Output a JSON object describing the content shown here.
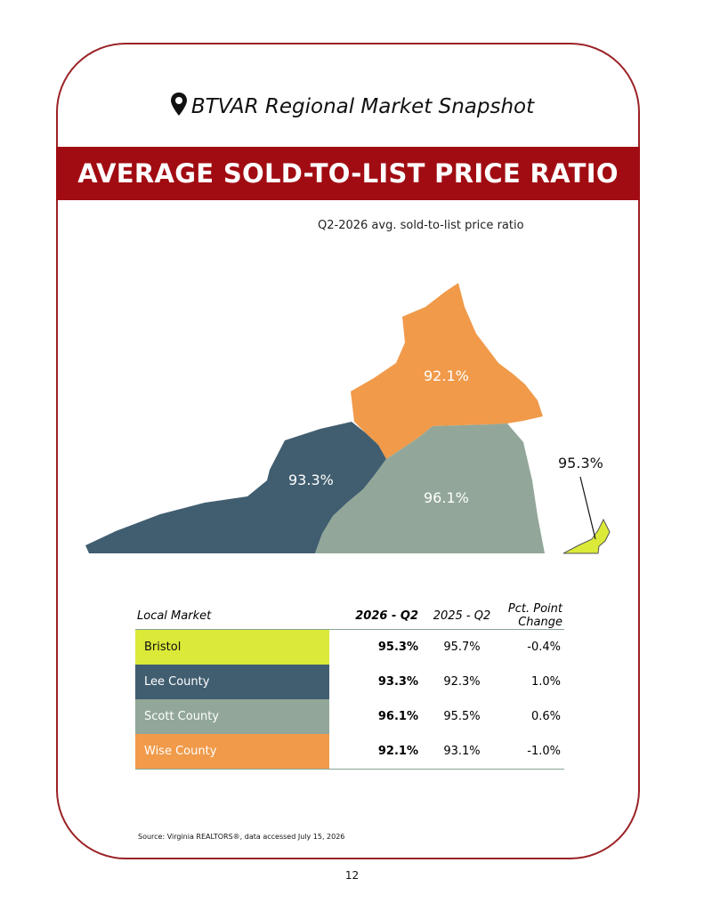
{
  "header": {
    "title": "BTVAR Regional Market Snapshot",
    "icon": "map-pin-icon"
  },
  "banner": {
    "title": "AVERAGE SOLD-TO-LIST PRICE RATIO",
    "color": "#a10c12"
  },
  "map": {
    "caption": "Q2-2026 avg. sold-to-list price ratio",
    "regions": [
      {
        "name": "Wise County",
        "label": "92.1%",
        "color": "#f09a4a"
      },
      {
        "name": "Lee County",
        "label": "93.3%",
        "color": "#415e70"
      },
      {
        "name": "Scott County",
        "label": "96.1%",
        "color": "#92a799"
      },
      {
        "name": "Bristol",
        "label": "95.3%",
        "color": "#dbe939"
      }
    ]
  },
  "table": {
    "headers": {
      "market": "Local Market",
      "current": "2026 - Q2",
      "previous": "2025 - Q2",
      "change": "Pct. Point Change"
    },
    "rows": [
      {
        "market": "Bristol",
        "current": "95.3%",
        "previous": "95.7%",
        "change": "-0.4%",
        "color": "#dbe939",
        "text_color": "#111111"
      },
      {
        "market": "Lee County",
        "current": "93.3%",
        "previous": "92.3%",
        "change": "1.0%",
        "color": "#415e70",
        "text_color": "#ffffff"
      },
      {
        "market": "Scott County",
        "current": "96.1%",
        "previous": "95.5%",
        "change": "0.6%",
        "color": "#92a799",
        "text_color": "#ffffff"
      },
      {
        "market": "Wise County",
        "current": "92.1%",
        "previous": "93.1%",
        "change": "-1.0%",
        "color": "#f09a4a",
        "text_color": "#ffffff"
      }
    ]
  },
  "source": "Source: Virginia REALTORS®, data accessed July 15, 2026",
  "page_number": "12"
}
